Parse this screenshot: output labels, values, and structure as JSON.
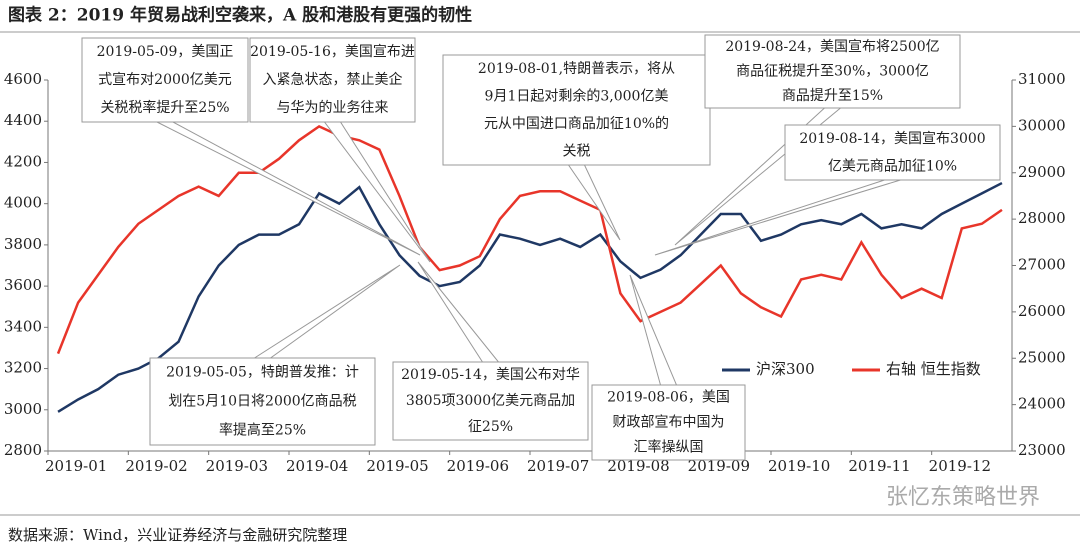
{
  "title": "图表 2：2019 年贸易战利空袭来，A 股和港股有更强的韧性",
  "source": "数据来源：Wind，兴业证券经济与金融研究院整理",
  "watermark": "张忆东策略世界",
  "chart_data": {
    "type": "line",
    "categories": [
      "2019-01",
      null,
      null,
      null,
      "2019-02",
      null,
      null,
      null,
      "2019-03",
      null,
      null,
      null,
      "2019-04",
      null,
      null,
      null,
      "2019-05",
      null,
      null,
      null,
      "2019-06",
      null,
      null,
      null,
      "2019-07",
      null,
      null,
      null,
      "2019-08",
      null,
      null,
      null,
      "2019-09",
      null,
      null,
      null,
      "2019-10",
      null,
      null,
      null,
      "2019-11",
      null,
      null,
      null,
      "2019-12",
      null,
      null,
      null
    ],
    "series": [
      {
        "name": "沪深300",
        "color": "#1f3864",
        "values": [
          2990,
          3050,
          3100,
          3170,
          3200,
          3250,
          3330,
          3550,
          3700,
          3800,
          3850,
          3850,
          3900,
          4050,
          4000,
          4080,
          3900,
          3750,
          3650,
          3600,
          3620,
          3700,
          3850,
          3830,
          3800,
          3830,
          3790,
          3850,
          3720,
          3640,
          3680,
          3750,
          3850,
          3950,
          3950,
          3820,
          3850,
          3900,
          3920,
          3900,
          3950,
          3880,
          3900,
          3880,
          3950,
          4000,
          4050,
          4100
        ]
      },
      {
        "name": "右轴 恒生指数",
        "color": "#e8352a",
        "axis": "y2",
        "values": [
          25100,
          26200,
          26800,
          27400,
          27900,
          28200,
          28500,
          28700,
          28500,
          29000,
          29000,
          29300,
          29700,
          30000,
          29800,
          29700,
          29500,
          28500,
          27400,
          26900,
          27000,
          27200,
          28000,
          28500,
          28600,
          28600,
          28400,
          28200,
          26400,
          25800,
          26000,
          26200,
          26600,
          27000,
          26400,
          26100,
          25900,
          26700,
          26800,
          26700,
          27500,
          26800,
          26300,
          26500,
          26300,
          27800,
          27900,
          28200
        ]
      }
    ],
    "ylim": [
      2800,
      4600
    ],
    "yticks": [
      2800,
      3000,
      3200,
      3400,
      3600,
      3800,
      4000,
      4200,
      4400,
      4600
    ],
    "y2lim": [
      23000,
      31000
    ],
    "y2ticks": [
      23000,
      24000,
      25000,
      26000,
      27000,
      28000,
      29000,
      30000,
      31000
    ],
    "legend": "right",
    "annotations": [
      [
        "2019-05-09，美国正",
        "式宣布对2000亿美元",
        "关税税率提升至25%"
      ],
      [
        "2019-05-16，美国宣布进",
        "入紧急状态，禁止美企",
        "与华为的业务往来"
      ],
      [
        "2019-08-01,特朗普表示，将从",
        "9月1日起对剩余的3,000亿美",
        "元从中国进口商品加征10%的",
        "关税"
      ],
      [
        "2019-08-24，美国宣布将2500亿",
        "商品征税提升至30%，3000亿",
        "商品提升至15%"
      ],
      [
        "2019-08-14，美国宣布3000",
        "亿美元商品加征10%"
      ],
      [
        "2019-05-05，特朗普发推：计",
        "划在5月10日将2000亿商品税",
        "率提高至25%"
      ],
      [
        "2019-05-14，美国公布对华",
        "3805项3000亿美元商品加",
        "征25%"
      ],
      [
        "2019-08-06，美国",
        "财政部宣布中国为",
        "汇率操纵国"
      ]
    ]
  }
}
